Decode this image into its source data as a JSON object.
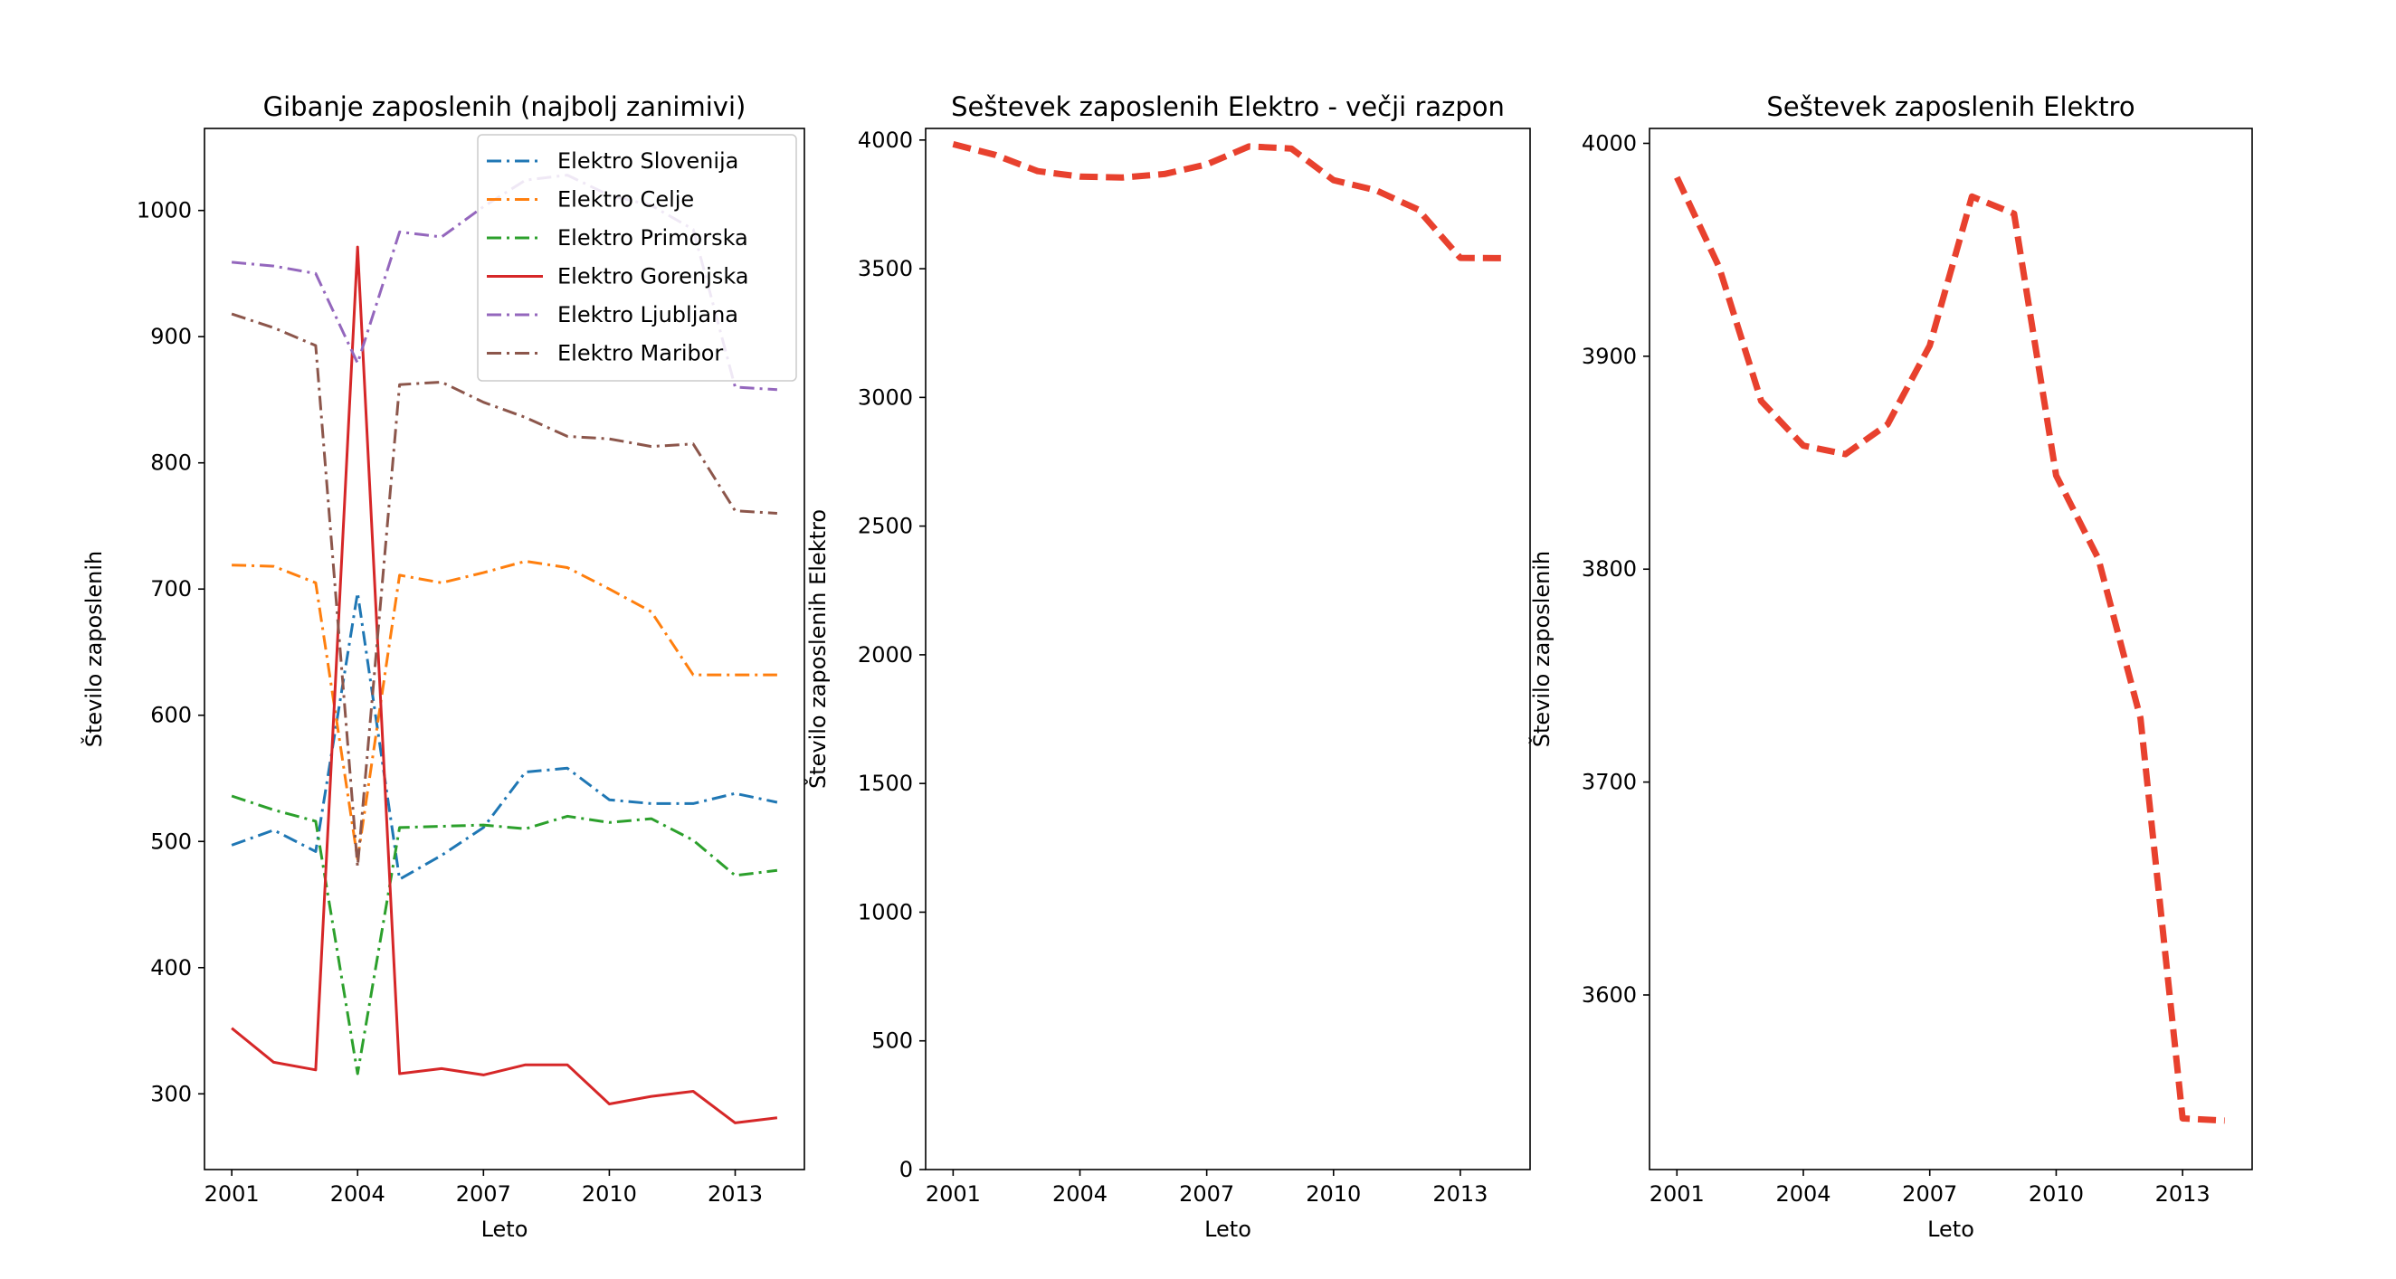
{
  "chart_data": [
    {
      "type": "line",
      "title": "Gibanje zaposlenih (najbolj zanimivi)",
      "xlabel": "Leto",
      "ylabel": "Število zaposlenih",
      "xlim": [
        2000.35,
        2014.65
      ],
      "ylim": [
        240,
        1065
      ],
      "xticks": [
        2001,
        2004,
        2007,
        2010,
        2013
      ],
      "yticks": [
        300,
        400,
        500,
        600,
        700,
        800,
        900,
        1000
      ],
      "grid": false,
      "legend_position": "upper right",
      "x": [
        2001,
        2002,
        2003,
        2004,
        2005,
        2006,
        2007,
        2008,
        2009,
        2010,
        2011,
        2012,
        2013,
        2014
      ],
      "series": [
        {
          "name": "Elektro Slovenija",
          "color": "#1f77b4",
          "dash": "dashdot",
          "values": [
            497,
            509,
            492,
            697,
            470,
            489,
            511,
            555,
            558,
            533,
            530,
            530,
            538,
            531
          ]
        },
        {
          "name": "Elektro Celje",
          "color": "#ff7f0e",
          "dash": "dashdot",
          "values": [
            719,
            718,
            705,
            486,
            711,
            705,
            713,
            722,
            717,
            700,
            682,
            632,
            632,
            632
          ]
        },
        {
          "name": "Elektro Primorska",
          "color": "#2ca02c",
          "dash": "dashdot",
          "values": [
            536,
            525,
            516,
            316,
            511,
            512,
            513,
            510,
            520,
            515,
            518,
            501,
            473,
            477
          ]
        },
        {
          "name": "Elektro Gorenjska",
          "color": "#d62728",
          "dash": "solid",
          "values": [
            352,
            325,
            319,
            971,
            316,
            320,
            315,
            323,
            323,
            292,
            298,
            302,
            277,
            281
          ]
        },
        {
          "name": "Elektro Ljubljana",
          "color": "#9467bd",
          "dash": "dashdot",
          "values": [
            959,
            956,
            950,
            879,
            983,
            979,
            1003,
            1024,
            1028,
            1012,
            1004,
            985,
            860,
            858
          ]
        },
        {
          "name": "Elektro Maribor",
          "color": "#8c564b",
          "dash": "dashdot",
          "values": [
            918,
            907,
            893,
            480,
            862,
            864,
            848,
            836,
            821,
            819,
            813,
            815,
            762,
            760
          ]
        }
      ]
    },
    {
      "type": "line",
      "title": "Seštevek zaposlenih Elektro - večji razpon",
      "xlabel": "Leto",
      "ylabel": "Število zaposlenih Elektro",
      "xlim": [
        2000.35,
        2014.65
      ],
      "ylim": [
        0,
        4045
      ],
      "xticks": [
        2001,
        2004,
        2007,
        2010,
        2013
      ],
      "yticks": [
        0,
        500,
        1000,
        1500,
        2000,
        2500,
        3000,
        3500,
        4000
      ],
      "grid": false,
      "x": [
        2001,
        2002,
        2003,
        2004,
        2005,
        2006,
        2007,
        2008,
        2009,
        2010,
        2011,
        2012,
        2013,
        2014
      ],
      "series": [
        {
          "color": "#e8412e",
          "dash": "dashed",
          "values": [
            3984,
            3942,
            3879,
            3858,
            3854,
            3868,
            3905,
            3975,
            3967,
            3844,
            3805,
            3730,
            3542,
            3541
          ]
        }
      ]
    },
    {
      "type": "line",
      "title": "Seštevek zaposlenih Elektro",
      "xlabel": "Leto",
      "ylabel": "Število zaposlenih",
      "xlim": [
        2000.35,
        2014.65
      ],
      "ylim": [
        3518,
        4007
      ],
      "xticks": [
        2001,
        2004,
        2007,
        2010,
        2013
      ],
      "yticks": [
        3600,
        3700,
        3800,
        3900,
        4000
      ],
      "grid": false,
      "x": [
        2001,
        2002,
        2003,
        2004,
        2005,
        2006,
        2007,
        2008,
        2009,
        2010,
        2011,
        2012,
        2013,
        2014
      ],
      "series": [
        {
          "color": "#e8412e",
          "dash": "dashed",
          "values": [
            3984,
            3942,
            3879,
            3858,
            3854,
            3868,
            3905,
            3975,
            3967,
            3844,
            3805,
            3730,
            3542,
            3541
          ]
        }
      ]
    }
  ]
}
